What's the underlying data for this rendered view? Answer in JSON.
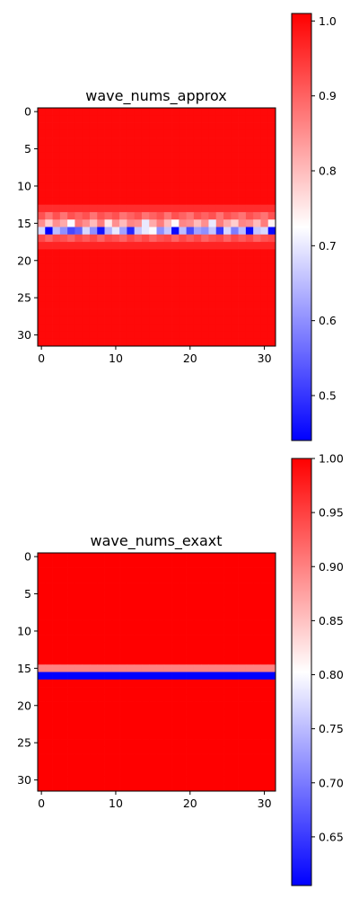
{
  "chart_data": [
    {
      "type": "heatmap",
      "title": "wave_nums_approx",
      "colormap": "bwr",
      "grid_size": [
        32,
        32
      ],
      "x_ticks": [
        0,
        10,
        20,
        30
      ],
      "y_ticks": [
        0,
        5,
        10,
        15,
        20,
        25,
        30
      ],
      "colorbar": {
        "range": [
          0.44,
          1.01
        ],
        "ticks": [
          0.5,
          0.6,
          0.7,
          0.8,
          0.9,
          1.0
        ],
        "tick_labels": [
          "0.5",
          "0.6",
          "0.7",
          "0.8",
          "0.9",
          "1.0"
        ]
      },
      "background_value": 1.0,
      "rows": {
        "13": [
          0.96,
          0.96,
          0.96,
          0.96,
          0.96,
          0.96,
          0.96,
          0.96,
          0.96,
          0.96,
          0.96,
          0.96,
          0.96,
          0.96,
          0.96,
          0.96,
          0.96,
          0.96,
          0.96,
          0.96,
          0.96,
          0.96,
          0.96,
          0.96,
          0.96,
          0.96,
          0.96,
          0.96,
          0.96,
          0.96,
          0.96,
          0.96
        ],
        "14": [
          0.92,
          0.88,
          0.92,
          0.88,
          0.92,
          0.9,
          0.92,
          0.88,
          0.92,
          0.9,
          0.92,
          0.88,
          0.9,
          0.92,
          0.88,
          0.9,
          0.92,
          0.88,
          0.92,
          0.9,
          0.88,
          0.92,
          0.9,
          0.92,
          0.88,
          0.92,
          0.9,
          0.88,
          0.92,
          0.9,
          0.88,
          0.92
        ],
        "15": [
          0.85,
          0.78,
          0.85,
          0.82,
          0.72,
          0.88,
          0.85,
          0.8,
          0.87,
          0.75,
          0.85,
          0.8,
          0.86,
          0.85,
          0.7,
          0.82,
          0.87,
          0.8,
          0.73,
          0.86,
          0.85,
          0.8,
          0.85,
          0.7,
          0.87,
          0.82,
          0.78,
          0.86,
          0.85,
          0.8,
          0.87,
          0.74
        ],
        "16": [
          0.68,
          0.44,
          0.65,
          0.6,
          0.52,
          0.55,
          0.68,
          0.6,
          0.46,
          0.64,
          0.7,
          0.62,
          0.48,
          0.66,
          0.7,
          0.72,
          0.6,
          0.66,
          0.45,
          0.65,
          0.52,
          0.62,
          0.6,
          0.66,
          0.5,
          0.68,
          0.58,
          0.65,
          0.45,
          0.66,
          0.68,
          0.45
        ],
        "17": [
          0.93,
          0.9,
          0.93,
          0.92,
          0.9,
          0.93,
          0.91,
          0.93,
          0.9,
          0.93,
          0.92,
          0.9,
          0.93,
          0.91,
          0.93,
          0.9,
          0.92,
          0.93,
          0.9,
          0.93,
          0.91,
          0.93,
          0.9,
          0.92,
          0.93,
          0.9,
          0.93,
          0.91,
          0.93,
          0.9,
          0.92,
          0.93
        ],
        "18": [
          0.97,
          0.97,
          0.97,
          0.97,
          0.97,
          0.97,
          0.97,
          0.97,
          0.97,
          0.97,
          0.97,
          0.97,
          0.97,
          0.97,
          0.97,
          0.97,
          0.97,
          0.97,
          0.97,
          0.97,
          0.97,
          0.97,
          0.97,
          0.97,
          0.97,
          0.97,
          0.97,
          0.97,
          0.97,
          0.97,
          0.97,
          0.97
        ]
      }
    },
    {
      "type": "heatmap",
      "title": "wave_nums_exaxt",
      "colormap": "bwr",
      "grid_size": [
        32,
        32
      ],
      "x_ticks": [
        0,
        10,
        20,
        30
      ],
      "y_ticks": [
        0,
        5,
        10,
        15,
        20,
        25,
        30
      ],
      "colorbar": {
        "range": [
          0.605,
          1.0
        ],
        "ticks": [
          0.65,
          0.7,
          0.75,
          0.8,
          0.85,
          0.9,
          0.95,
          1.0
        ],
        "tick_labels": [
          "0.65",
          "0.70",
          "0.75",
          "0.80",
          "0.85",
          "0.90",
          "0.95",
          "1.00"
        ]
      },
      "background_value": 1.0,
      "row_values": {
        "15": 0.9,
        "16": 0.605
      }
    }
  ]
}
